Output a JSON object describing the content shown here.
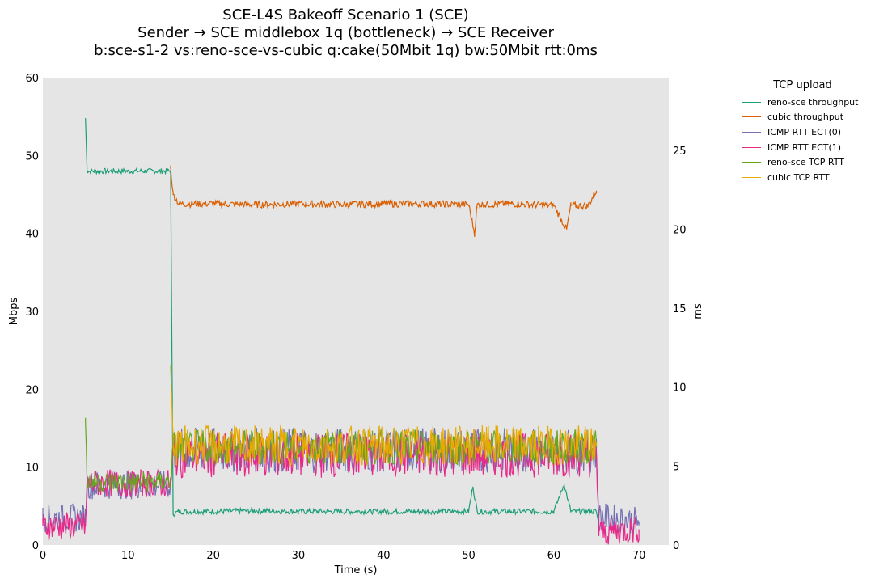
{
  "chart_data": {
    "type": "line",
    "title": [
      "SCE-L4S Bakeoff Scenario 1 (SCE)",
      "Sender → SCE middlebox 1q (bottleneck) → SCE Receiver",
      "b:sce-s1-2 vs:reno-sce-vs-cubic q:cake(50Mbit 1q) bw:50Mbit rtt:0ms"
    ],
    "xlabel": "Time (s)",
    "ylabel_left": "Mbps",
    "ylabel_right": "ms",
    "xlim": [
      0,
      73.5
    ],
    "ylim_left": [
      0,
      60
    ],
    "ylim_right": [
      0,
      29.6
    ],
    "xticks": [
      0,
      10,
      20,
      30,
      40,
      50,
      60,
      70
    ],
    "yticks_left": [
      0,
      10,
      20,
      30,
      40,
      50,
      60
    ],
    "yticks_right": [
      0,
      5,
      10,
      15,
      20,
      25
    ],
    "grid": false,
    "background": "#e5e5e5",
    "legend": {
      "title": "TCP upload",
      "placement": "outside-right"
    },
    "series": [
      {
        "name": "reno-sce throughput",
        "axis": "left",
        "color": "#1b9e77",
        "x": [
          5.0,
          5.2,
          6,
          8,
          10,
          12,
          14,
          15.0,
          15.3,
          16,
          20,
          25,
          30,
          40,
          50,
          50.5,
          51,
          55,
          60,
          61.2,
          62,
          65,
          65.3
        ],
        "y": [
          54.8,
          48,
          48,
          48,
          48,
          48,
          48,
          48,
          4,
          4.3,
          4.3,
          4.4,
          4.3,
          4.3,
          4.3,
          7.5,
          4.3,
          4.3,
          4.3,
          7.8,
          4.3,
          4.3,
          2.5
        ]
      },
      {
        "name": "cubic throughput",
        "axis": "left",
        "color": "#d95f02",
        "x": [
          15.0,
          15.3,
          16,
          20,
          25,
          30,
          35,
          40,
          45,
          50,
          50.7,
          51,
          55,
          60,
          61.5,
          62,
          64,
          65
        ],
        "y": [
          48.5,
          45,
          43.8,
          43.8,
          43.7,
          43.8,
          43.7,
          43.8,
          43.8,
          43.7,
          40,
          43.7,
          43.8,
          43.6,
          40.5,
          43.6,
          43.5,
          45.5
        ]
      },
      {
        "name": "ICMP RTT ECT(0)",
        "axis": "right",
        "color": "#7570b3",
        "x": [
          0,
          5,
          5.2,
          10,
          15,
          15.3,
          20,
          30,
          40,
          50,
          60,
          65,
          65.3,
          70
        ],
        "y": [
          1.7,
          1.7,
          3.8,
          3.8,
          3.8,
          6,
          6,
          6,
          6,
          6,
          6,
          6,
          1.8,
          1.5
        ]
      },
      {
        "name": "ICMP RTT ECT(1)",
        "axis": "right",
        "color": "#e7298a",
        "x": [
          0,
          5,
          5.2,
          10,
          15,
          15.3,
          20,
          30,
          40,
          50,
          60,
          65,
          65.3,
          70
        ],
        "y": [
          1.2,
          1.2,
          3.9,
          3.9,
          3.9,
          5.7,
          5.7,
          5.7,
          5.7,
          5.7,
          5.7,
          5.7,
          0.8,
          1.0
        ]
      },
      {
        "name": "reno-sce TCP RTT",
        "axis": "right",
        "color": "#66a61e",
        "x": [
          5,
          5.2,
          10,
          15,
          15.3,
          20,
          30,
          40,
          50,
          60,
          65
        ],
        "y": [
          7.8,
          4,
          4,
          4,
          6.2,
          6.2,
          6.2,
          6.2,
          6.2,
          6.2,
          6.2
        ]
      },
      {
        "name": "cubic TCP RTT",
        "axis": "right",
        "color": "#e6ab02",
        "x": [
          15,
          15.3,
          20,
          30,
          40,
          50,
          60,
          65
        ],
        "y": [
          11.2,
          6.3,
          6.3,
          6.3,
          6.3,
          6.3,
          6.3,
          6.3
        ]
      }
    ]
  }
}
